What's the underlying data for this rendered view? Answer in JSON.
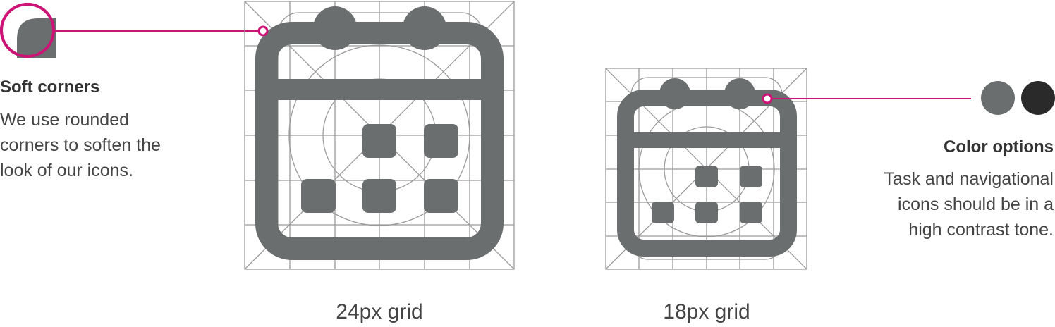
{
  "soft_corners": {
    "title": "Soft corners",
    "lines": [
      "We use rounded",
      "corners to soften the",
      "look of our icons."
    ]
  },
  "color_options": {
    "title": "Color options",
    "lines": [
      "Task and navigational",
      "icons should be in a",
      "high contrast tone."
    ],
    "swatches": [
      "#6b6e6e",
      "#2a2a2a"
    ]
  },
  "captions": {
    "large": "24px grid",
    "small": "18px grid"
  },
  "colors": {
    "icon": "#6b6e6e",
    "accent": "#cc1477",
    "grid": "#9a9a9a"
  },
  "icon": "calendar-icon"
}
